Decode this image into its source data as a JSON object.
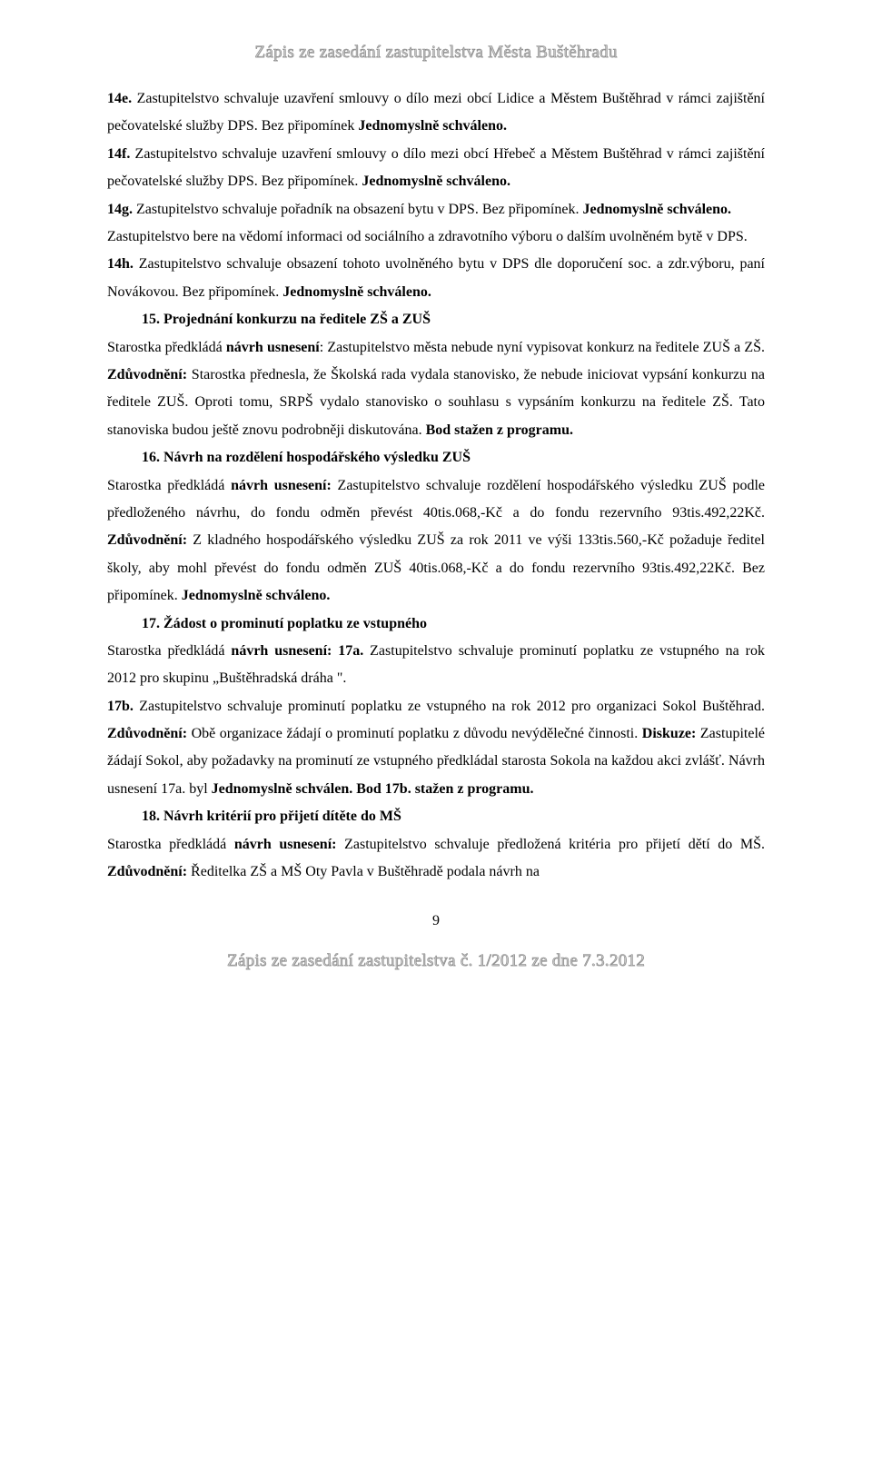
{
  "meta": {
    "page_number": "9"
  },
  "watermark": {
    "header": "Zápis ze zasedání zastupitelstva Města Buštěhradu",
    "footer": "Zápis ze zasedání zastupitelstva č. 1/2012 ze dne 7.3.2012"
  },
  "p14e": {
    "label": "14e.",
    "t1": " Zastupitelstvo schvaluje uzavření smlouvy o dílo mezi obcí Lidice a Městem Buštěhrad v rámci zajištění pečovatelské služby DPS. Bez připomínek ",
    "t2": "Jednomyslně schváleno."
  },
  "p14f": {
    "label": "14f.",
    "t1": " Zastupitelstvo schvaluje uzavření smlouvy o dílo mezi obcí Hřebeč a Městem Buštěhrad v rámci zajištění pečovatelské služby DPS. Bez připomínek. ",
    "t2": "Jednomyslně schváleno."
  },
  "p14g": {
    "label": "14g.",
    "t1": " Zastupitelstvo schvaluje pořadník na obsazení bytu v DPS. Bez připomínek. ",
    "t2": "Jednomyslně schváleno."
  },
  "p14g2": {
    "t1": "Zastupitelstvo bere na vědomí informaci od sociálního a zdravotního výboru o dalším uvolněném bytě v DPS."
  },
  "p14h": {
    "label": "14h.",
    "t1": " Zastupitelstvo schvaluje obsazení tohoto uvolněného bytu v DPS dle doporučení soc. a zdr.výboru, paní Novákovou. Bez připomínek. ",
    "t2": "Jednomyslně schváleno."
  },
  "s15": {
    "heading": "15. Projednání konkurzu na ředitele ZŠ a ZUŠ",
    "t1": "Starostka předkládá ",
    "b1": "návrh usnesení",
    "t2": ": Zastupitelstvo města nebude nyní vypisovat konkurz na ředitele ZUŠ a ZŠ. ",
    "b2": "Zdůvodnění:",
    "t3": " Starostka přednesla, že Školská rada vydala stanovisko, že nebude iniciovat vypsání konkurzu na ředitele ZUŠ. Oproti tomu, SRPŠ vydalo stanovisko o souhlasu s vypsáním konkurzu na ředitele ZŠ. Tato stanoviska budou ještě znovu podrobněji diskutována. ",
    "b3": "Bod stažen z programu."
  },
  "s16": {
    "heading": "16. Návrh na rozdělení hospodářského výsledku ZUŠ",
    "t1": "Starostka předkládá ",
    "b1": "návrh usnesení:",
    "t2": " Zastupitelstvo schvaluje rozdělení hospodářského výsledku ZUŠ podle předloženého návrhu, do fondu odměn převést 40tis.068,-Kč a do fondu rezervního 93tis.492,22Kč. ",
    "b2": "Zdůvodnění:",
    "t3": " Z kladného hospodářského výsledku ZUŠ za rok 2011 ve výši 133tis.560,-Kč požaduje ředitel školy, aby mohl převést do fondu odměn ZUŠ 40tis.068,-Kč a do fondu rezervního 93tis.492,22Kč. Bez připomínek. ",
    "b3": "Jednomyslně schváleno."
  },
  "s17": {
    "heading": "17. Žádost o prominutí poplatku ze vstupného",
    "t1": "Starostka předkládá ",
    "b1": "návrh usnesení: 17a.",
    "t2": " Zastupitelstvo schvaluje prominutí poplatku ze vstupného na rok 2012 pro skupinu „Buštěhradská dráha \"."
  },
  "p17b": {
    "label": "17b.",
    "t1": " Zastupitelstvo schvaluje prominutí poplatku ze vstupného na rok 2012 pro organizaci Sokol Buštěhrad. ",
    "b1": "Zdůvodnění:",
    "t2": " Obě organizace žádají o prominutí poplatku z důvodu nevýdělečné činnosti. ",
    "b2": "Diskuze:",
    "t3": " Zastupitelé žádají Sokol, aby požadavky na prominutí ze vstupného předkládal starosta Sokola na každou akci zvlášť. Návrh usnesení 17a. byl ",
    "b3": "Jednomyslně schválen. Bod 17b. stažen z programu."
  },
  "s18": {
    "heading": "18. Návrh kritérií pro přijetí dítěte do MŠ",
    "t1": "Starostka předkládá ",
    "b1": "návrh usnesení:",
    "t2": "  Zastupitelstvo schvaluje předložená kritéria pro přijetí dětí do MŠ. ",
    "b2": "Zdůvodnění:",
    "t3": " Ředitelka ZŠ a MŠ Oty Pavla v Buštěhradě podala návrh na"
  }
}
